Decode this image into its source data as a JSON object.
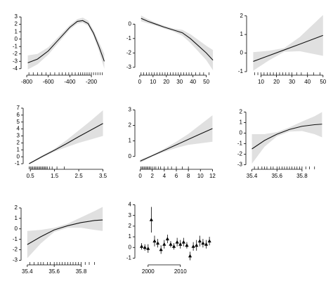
{
  "chart_data": [
    {
      "type": "line",
      "x": [
        -790,
        -700,
        -600,
        -500,
        -400,
        -330,
        -280,
        -230,
        -180,
        -130,
        -80
      ],
      "values": [
        -3.2,
        -2.7,
        -1.6,
        0,
        1.6,
        2.4,
        2.5,
        2.1,
        0.8,
        -1,
        -3
      ],
      "lower": [
        -4.1,
        -3.4,
        -2.1,
        -0.4,
        1.3,
        2.1,
        2.2,
        1.8,
        0.4,
        -1.6,
        -4
      ],
      "upper": [
        -2.2,
        -2,
        -1.1,
        0.4,
        1.9,
        2.7,
        2.9,
        2.5,
        1.2,
        -0.4,
        -2
      ],
      "rug": [
        -780,
        -740,
        -700,
        -660,
        -620,
        -580,
        -540,
        -500,
        -470,
        -440,
        -410,
        -380,
        -350,
        -320,
        -300,
        -280,
        -260,
        -240,
        -220,
        -200,
        -180,
        -160,
        -140,
        -120,
        -100
      ],
      "xlim": [
        -820,
        -70
      ],
      "ylim": [
        -4.4,
        3.2
      ],
      "xticks": [
        -800,
        -600,
        -400,
        -200
      ],
      "yticks": [
        -4,
        -3,
        -2,
        -1,
        0,
        1,
        2,
        3
      ]
    },
    {
      "type": "line",
      "x": [
        1,
        6,
        12,
        18,
        25,
        32,
        38,
        44,
        50,
        55
      ],
      "values": [
        0.4,
        0.2,
        0,
        -0.2,
        -0.4,
        -0.6,
        -1,
        -1.5,
        -2,
        -2.5
      ],
      "lower": [
        0.2,
        0.05,
        -0.1,
        -0.3,
        -0.5,
        -0.8,
        -1.3,
        -1.9,
        -2.5,
        -3.2
      ],
      "upper": [
        0.6,
        0.35,
        0.1,
        -0.1,
        -0.3,
        -0.4,
        -0.7,
        -1.1,
        -1.5,
        -1.8
      ],
      "rug": [
        1,
        3,
        5,
        7,
        9,
        11,
        13,
        15,
        17,
        19,
        21,
        23,
        25,
        27,
        29,
        31,
        33,
        35,
        37,
        39,
        42,
        45,
        48,
        52
      ],
      "xlim": [
        -1,
        56
      ],
      "ylim": [
        -3.3,
        0.6
      ],
      "xticks": [
        0,
        10,
        20,
        30,
        40,
        50
      ],
      "yticks": [
        -3,
        -2,
        -1,
        0
      ]
    },
    {
      "type": "line",
      "x": [
        5,
        15,
        25,
        35,
        50
      ],
      "values": [
        -0.45,
        -0.14,
        0.17,
        0.48,
        0.95
      ],
      "lower": [
        -0.95,
        -0.4,
        0.07,
        0.1,
        -0.15
      ],
      "upper": [
        0.05,
        0.12,
        0.27,
        0.86,
        2.05
      ],
      "rug": [
        6,
        8,
        10,
        12,
        14,
        16,
        18,
        20,
        22,
        24,
        26,
        28,
        30,
        33,
        36,
        40,
        44,
        48
      ],
      "xlim": [
        3,
        51
      ],
      "ylim": [
        -1,
        2.1
      ],
      "xticks": [
        10,
        20,
        30,
        40,
        50
      ],
      "yticks": [
        -1,
        0,
        1,
        2
      ]
    },
    {
      "type": "line",
      "x": [
        0.45,
        1,
        1.5,
        2,
        2.5,
        3,
        3.5
      ],
      "values": [
        -1,
        0.05,
        0.95,
        1.9,
        2.9,
        3.85,
        4.8
      ],
      "lower": [
        -1.1,
        -0.1,
        0.75,
        1.4,
        2,
        2.5,
        3
      ],
      "upper": [
        -0.9,
        0.2,
        1.15,
        2.4,
        3.8,
        5.2,
        6.7
      ],
      "rug": [
        0.45,
        0.5,
        0.55,
        0.6,
        0.65,
        0.7,
        0.75,
        0.8,
        0.85,
        0.9,
        0.95,
        1,
        1.05,
        1.1,
        1.15,
        1.2,
        1.3,
        1.4,
        1.6,
        1.9
      ],
      "xlim": [
        0.35,
        3.6
      ],
      "ylim": [
        -1.3,
        7.2
      ],
      "xticks": [
        0.5,
        1.5,
        2.5,
        3.5
      ],
      "yticks": [
        -1,
        0,
        1,
        2,
        3,
        4,
        5,
        6,
        7
      ]
    },
    {
      "type": "line",
      "x": [
        0,
        2,
        4,
        6,
        8,
        10,
        12
      ],
      "values": [
        -0.3,
        0.05,
        0.4,
        0.75,
        1.1,
        1.45,
        1.8
      ],
      "lower": [
        -0.4,
        0,
        0.3,
        0.55,
        0.75,
        0.85,
        0.95
      ],
      "upper": [
        -0.2,
        0.1,
        0.5,
        0.95,
        1.45,
        2.05,
        2.65
      ],
      "rug": [
        0.1,
        0.3,
        0.5,
        0.7,
        0.9,
        1.1,
        1.3,
        1.5,
        1.7,
        2,
        2.3,
        2.6,
        3,
        3.4,
        4,
        4.6,
        5.2,
        6,
        7,
        8
      ],
      "xlim": [
        -0.3,
        12.3
      ],
      "ylim": [
        -0.6,
        3.2
      ],
      "xticks": [
        0,
        2,
        4,
        6,
        8,
        10,
        12
      ],
      "yticks": [
        0,
        1,
        2,
        3
      ]
    },
    {
      "type": "line",
      "x": [
        35.4,
        35.5,
        35.6,
        35.7,
        35.8,
        35.9,
        35.96
      ],
      "values": [
        -1.5,
        -0.7,
        -0.1,
        0.35,
        0.65,
        0.8,
        0.85
      ],
      "lower": [
        -2.9,
        -1.3,
        -0.3,
        0.15,
        0.2,
        -0.1,
        -0.4
      ],
      "upper": [
        -0.1,
        -0.1,
        0.1,
        0.55,
        1.1,
        1.6,
        2
      ],
      "rug": [
        35.42,
        35.45,
        35.48,
        35.5,
        35.52,
        35.55,
        35.57,
        35.6,
        35.62,
        35.64,
        35.66,
        35.68,
        35.7,
        35.72,
        35.74,
        35.76,
        35.78,
        35.8,
        35.83,
        35.86,
        35.9
      ],
      "xlim": [
        35.38,
        35.98
      ],
      "ylim": [
        -3.1,
        2.5
      ],
      "xticks": [
        35.4,
        35.6,
        35.8
      ],
      "yticks": [
        -3,
        -2,
        -1,
        0,
        1,
        2
      ]
    },
    {
      "type": "line",
      "x": [
        35.4,
        35.5,
        35.6,
        35.7,
        35.8,
        35.9,
        35.96
      ],
      "values": [
        -1.5,
        -0.75,
        -0.1,
        0.3,
        0.6,
        0.8,
        0.85
      ],
      "lower": [
        -2.8,
        -1.4,
        -0.3,
        0.1,
        0.1,
        -0.1,
        -0.2
      ],
      "upper": [
        -0.2,
        -0.1,
        0.1,
        0.5,
        1.1,
        1.7,
        2.1
      ],
      "rug": [
        35.42,
        35.45,
        35.48,
        35.5,
        35.52,
        35.55,
        35.57,
        35.6,
        35.62,
        35.64,
        35.66,
        35.68,
        35.7,
        35.72,
        35.74,
        35.76,
        35.78,
        35.8,
        35.83,
        35.86,
        35.9
      ],
      "xlim": [
        35.38,
        35.98
      ],
      "ylim": [
        -3.1,
        2.4
      ],
      "xticks": [
        35.4,
        35.6,
        35.8
      ],
      "yticks": [
        -3,
        -2,
        -1,
        0,
        1,
        2
      ]
    },
    {
      "type": "errorbar",
      "x": [
        1998,
        1999,
        2000,
        2001,
        2002,
        2003,
        2004,
        2005,
        2006,
        2007,
        2008,
        2009,
        2010,
        2011,
        2012,
        2013,
        2014,
        2015,
        2016,
        2017,
        2018,
        2019
      ],
      "values": [
        0.1,
        0,
        -0.1,
        2.6,
        0.6,
        0.4,
        -0.2,
        0.3,
        0.8,
        0.3,
        0.1,
        0.5,
        0.3,
        0.5,
        0.2,
        -0.8,
        0.1,
        0.2,
        0.6,
        0.4,
        0.3,
        0.6
      ],
      "errors": [
        0.3,
        0.3,
        0.4,
        1.2,
        0.5,
        0.4,
        0.4,
        0.4,
        0.4,
        0.3,
        0.3,
        0.4,
        0.4,
        0.4,
        0.3,
        0.4,
        0.4,
        0.5,
        0.5,
        0.4,
        0.4,
        0.4
      ],
      "xlim": [
        1997,
        2020.5
      ],
      "ylim": [
        -1.3,
        4.1
      ],
      "xticks": [
        2000,
        2010
      ],
      "yticks": [
        -1,
        0,
        1,
        2,
        3,
        4
      ]
    }
  ]
}
